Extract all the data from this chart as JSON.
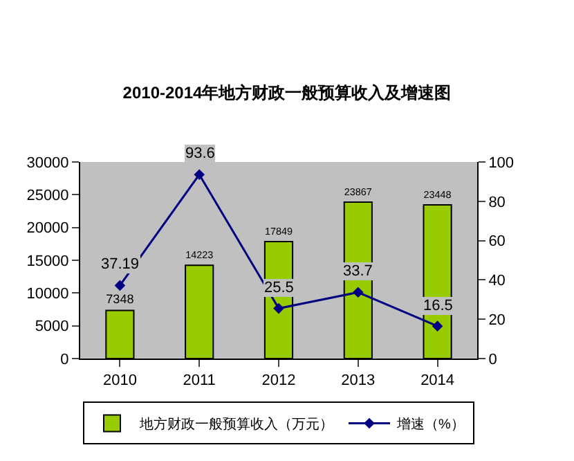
{
  "chart_data": {
    "type": "bar",
    "title": "2010-2014年地方财政一般预算收入及增速图",
    "categories": [
      "2010",
      "2011",
      "2012",
      "2013",
      "2014"
    ],
    "series": [
      {
        "name": "地方财政一般预算收入（万元）",
        "color": "#99cc00",
        "values": [
          7348,
          14223,
          17849,
          23867,
          23448
        ]
      },
      {
        "name": "增速（%）",
        "type": "line",
        "axis": "y2",
        "color": "#000080",
        "values": [
          37.19,
          93.6,
          25.5,
          33.7,
          16.5
        ]
      }
    ],
    "ylim": [
      0,
      30000
    ],
    "yticks": [
      0,
      5000,
      10000,
      15000,
      20000,
      25000,
      30000
    ],
    "y2lim": [
      0,
      100
    ],
    "y2ticks": [
      0,
      20,
      40,
      60,
      80,
      100
    ],
    "data_labels": true,
    "legend": "bottom",
    "marker": "diamond",
    "grid": false
  }
}
